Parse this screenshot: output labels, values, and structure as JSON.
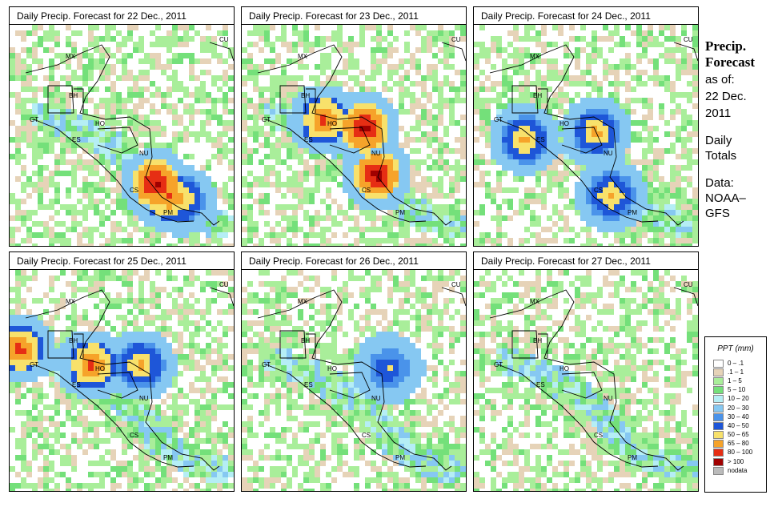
{
  "panels": [
    {
      "title": "Daily Precip. Forecast for  22 Dec., 2011",
      "seed": 11,
      "hot": [
        [
          180,
          195,
          3
        ],
        [
          195,
          210,
          2
        ],
        [
          210,
          215,
          1
        ]
      ]
    },
    {
      "title": "Daily Precip. Forecast for  23 Dec., 2011",
      "seed": 23,
      "hot": [
        [
          150,
          125,
          3
        ],
        [
          165,
          185,
          3
        ],
        [
          100,
          115,
          2
        ]
      ]
    },
    {
      "title": "Daily Precip. Forecast for  24 Dec., 2011",
      "seed": 37,
      "hot": [
        [
          150,
          130,
          1
        ],
        [
          168,
          210,
          1
        ],
        [
          60,
          140,
          1
        ]
      ]
    },
    {
      "title": "Daily Precip. Forecast for  25 Dec., 2011",
      "seed": 41,
      "hot": [
        [
          10,
          95,
          2
        ],
        [
          100,
          115,
          2
        ],
        [
          160,
          115,
          1
        ]
      ]
    },
    {
      "title": "Daily Precip. Forecast for  26 Dec., 2011",
      "seed": 53,
      "hot": [
        [
          180,
          120,
          0
        ]
      ]
    },
    {
      "title": "Daily Precip. Forecast for  27 Dec., 2011",
      "seed": 67,
      "hot": []
    }
  ],
  "map_labels": {
    "cu": "CU",
    "mx": "MX",
    "bh": "BH",
    "gt": "GT",
    "ho": "HO",
    "es": "ES",
    "nu": "NU",
    "cs": "CS",
    "pm": "PM"
  },
  "sidebar": {
    "title_line1": "Precip.",
    "title_line2": "Forecast",
    "asof_line1": "as of:",
    "asof_line2": "22 Dec.",
    "asof_line3": "2011",
    "daily_line1": "Daily",
    "daily_line2": "Totals",
    "data_line1": "Data:",
    "data_line2": "NOAA–",
    "data_line3": "GFS"
  },
  "legend": {
    "title": "PPT (mm)",
    "items": [
      {
        "label": "0 – .1",
        "color": "#ffffff"
      },
      {
        "label": ".1 – 1",
        "color": "#e6d3b8"
      },
      {
        "label": "1 – 5",
        "color": "#a9ee9a"
      },
      {
        "label": "5 – 10",
        "color": "#74e07a"
      },
      {
        "label": "10 – 20",
        "color": "#b5eef5"
      },
      {
        "label": "20 – 30",
        "color": "#86c8f2"
      },
      {
        "label": "30 – 40",
        "color": "#4a93ea"
      },
      {
        "label": "40 – 50",
        "color": "#1e56d8"
      },
      {
        "label": "50 – 65",
        "color": "#f8e16b"
      },
      {
        "label": "65 – 80",
        "color": "#f6a32a"
      },
      {
        "label": "80 – 100",
        "color": "#e62e14"
      },
      {
        "label": "> 100",
        "color": "#a00000"
      },
      {
        "label": "nodata",
        "color": "#bbbbbb"
      }
    ]
  }
}
